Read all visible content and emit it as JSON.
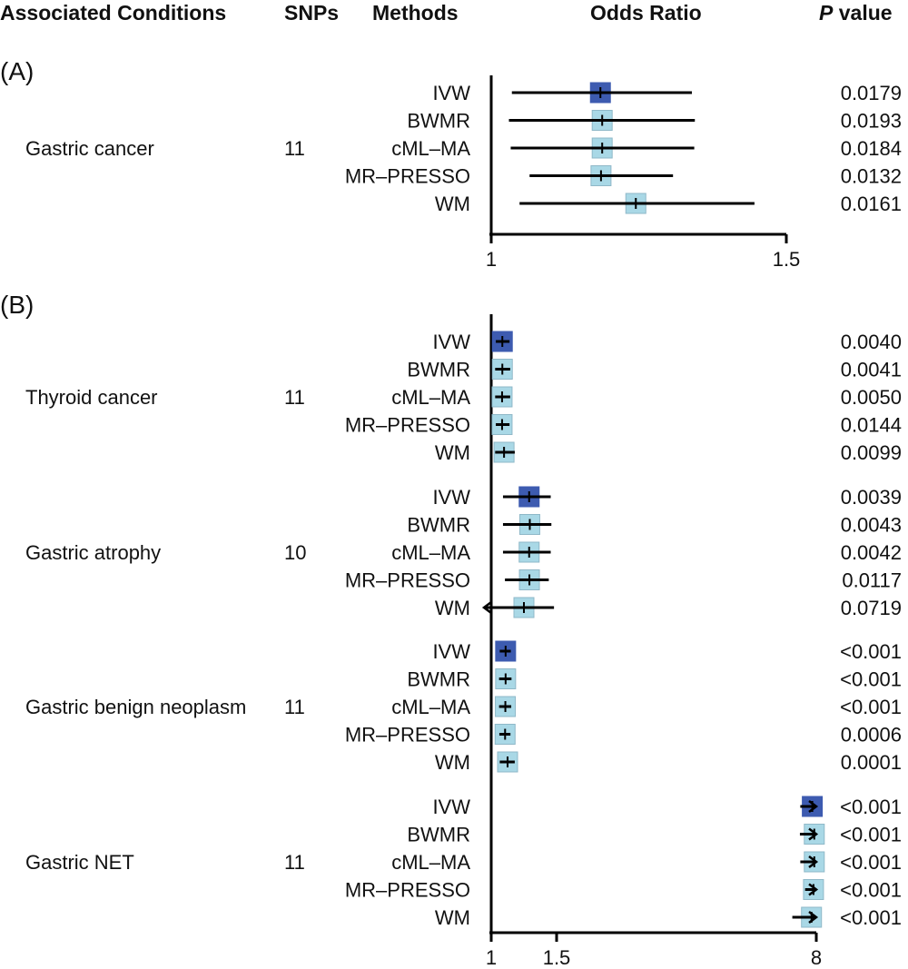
{
  "headers": {
    "condition": "Associated Conditions",
    "snps": "SNPs",
    "methods": "Methods",
    "odds_ratio": "Odds Ratio",
    "p_italic": "P",
    "p_rest": " value"
  },
  "colors": {
    "ivw": "#3d5bb0",
    "other": "#a9d8e6",
    "box_border": "#8fb8c8"
  },
  "chart_data": [
    {
      "type": "forest",
      "panel": "(A)",
      "x_ticks": [
        "1",
        "1.5"
      ],
      "groups": [
        {
          "condition": "Gastric cancer",
          "snps": "11",
          "rows": [
            {
              "method": "IVW",
              "or": 1.185,
              "lo": 1.035,
              "hi": 1.34,
              "p": "0.0179"
            },
            {
              "method": "BWMR",
              "or": 1.188,
              "lo": 1.03,
              "hi": 1.345,
              "p": "0.0193"
            },
            {
              "method": "cML–MA",
              "or": 1.188,
              "lo": 1.033,
              "hi": 1.344,
              "p": "0.0184"
            },
            {
              "method": "MR–PRESSO",
              "or": 1.186,
              "lo": 1.065,
              "hi": 1.308,
              "p": "0.0132"
            },
            {
              "method": "WM",
              "or": 1.245,
              "lo": 1.048,
              "hi": 1.446,
              "p": "0.0161"
            }
          ]
        }
      ]
    },
    {
      "type": "forest",
      "panel": "(B)",
      "x_ticks": [
        "1",
        "1.5",
        "8"
      ],
      "groups": [
        {
          "condition": "Thyroid cancer",
          "snps": "11",
          "rows": [
            {
              "method": "IVW",
              "or": 1.085,
              "lo": 1.035,
              "hi": 1.14,
              "p": "0.0040"
            },
            {
              "method": "BWMR",
              "or": 1.085,
              "lo": 1.03,
              "hi": 1.145,
              "p": "0.0041"
            },
            {
              "method": "cML–MA",
              "or": 1.083,
              "lo": 1.03,
              "hi": 1.145,
              "p": "0.0050"
            },
            {
              "method": "MR–PRESSO",
              "or": 1.083,
              "lo": 1.035,
              "hi": 1.14,
              "p": "0.0144"
            },
            {
              "method": "WM",
              "or": 1.098,
              "lo": 1.03,
              "hi": 1.18,
              "p": "0.0099"
            }
          ]
        },
        {
          "condition": "Gastric atrophy",
          "snps": "10",
          "rows": [
            {
              "method": "IVW",
              "or": 1.29,
              "lo": 1.09,
              "hi": 1.455,
              "p": "0.0039"
            },
            {
              "method": "BWMR",
              "or": 1.295,
              "lo": 1.09,
              "hi": 1.46,
              "p": "0.0043"
            },
            {
              "method": "cML–MA",
              "or": 1.29,
              "lo": 1.09,
              "hi": 1.455,
              "p": "0.0042"
            },
            {
              "method": "MR–PRESSO",
              "or": 1.292,
              "lo": 1.105,
              "hi": 1.44,
              "p": "0.0117"
            },
            {
              "method": "WM",
              "or": 1.25,
              "lo": 0.98,
              "hi": 1.48,
              "p": "0.0719"
            }
          ]
        },
        {
          "condition": "Gastric benign neoplasm",
          "snps": "11",
          "rows": [
            {
              "method": "IVW",
              "or": 1.11,
              "lo": 1.065,
              "hi": 1.15,
              "p": "<0.001"
            },
            {
              "method": "BWMR",
              "or": 1.11,
              "lo": 1.06,
              "hi": 1.155,
              "p": "<0.001"
            },
            {
              "method": "cML–MA",
              "or": 1.108,
              "lo": 1.06,
              "hi": 1.153,
              "p": "<0.001"
            },
            {
              "method": "MR–PRESSO",
              "or": 1.106,
              "lo": 1.062,
              "hi": 1.147,
              "p": "0.0006"
            },
            {
              "method": "WM",
              "or": 1.125,
              "lo": 1.065,
              "hi": 1.18,
              "p": "0.0001"
            }
          ]
        },
        {
          "condition": "Gastric NET",
          "snps": "11",
          "rows": [
            {
              "method": "IVW",
              "or": 7.9,
              "lo": 7.6,
              "hi": 8.0,
              "p": "<0.001"
            },
            {
              "method": "BWMR",
              "or": 7.95,
              "lo": 7.59,
              "hi": 8.0,
              "p": "<0.001"
            },
            {
              "method": "cML–MA",
              "or": 7.95,
              "lo": 7.6,
              "hi": 8.0,
              "p": "<0.001"
            },
            {
              "method": "MR–PRESSO",
              "or": 7.93,
              "lo": 7.72,
              "hi": 8.0,
              "p": "<0.001"
            },
            {
              "method": "WM",
              "or": 7.88,
              "lo": 7.4,
              "hi": 8.0,
              "p": "<0.001"
            }
          ]
        }
      ]
    }
  ]
}
